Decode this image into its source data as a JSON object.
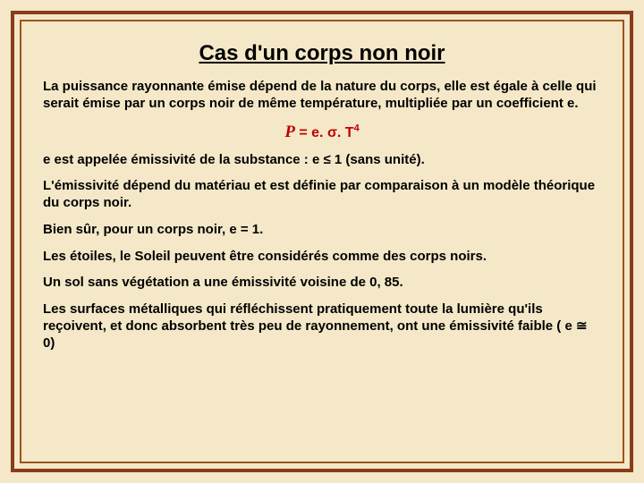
{
  "title": "Cas d'un corps non noir",
  "para1": "La puissance rayonnante émise dépend de la nature du corps, elle est égale à celle qui serait émise par un corps noir de même température, multipliée par un coefficient e.",
  "formula": {
    "lhs": "P",
    "rhs_prefix": " = e. σ. T",
    "exponent": "4"
  },
  "para2": "e est appelée émissivité de la substance : e ≤ 1 (sans unité).",
  "para3": "L'émissivité dépend du matériau et est définie par comparaison à un modèle théorique du corps noir.",
  "para4": "Bien sûr, pour un corps noir, e = 1.",
  "para5": "Les étoiles, le Soleil peuvent être considérés comme des corps noirs.",
  "para6": "Un sol sans végétation a une émissivité voisine de 0, 85.",
  "para7": "Les surfaces métalliques qui réfléchissent pratiquement toute la lumière qu'ils reçoivent, et donc absorbent très peu de rayonnement, ont une émissivité faible ( e ≅ 0)",
  "colors": {
    "background": "#f4e8c8",
    "outer_border": "#8b3a1a",
    "inner_border": "#a0521d",
    "text": "#000000",
    "formula": "#c00000"
  }
}
